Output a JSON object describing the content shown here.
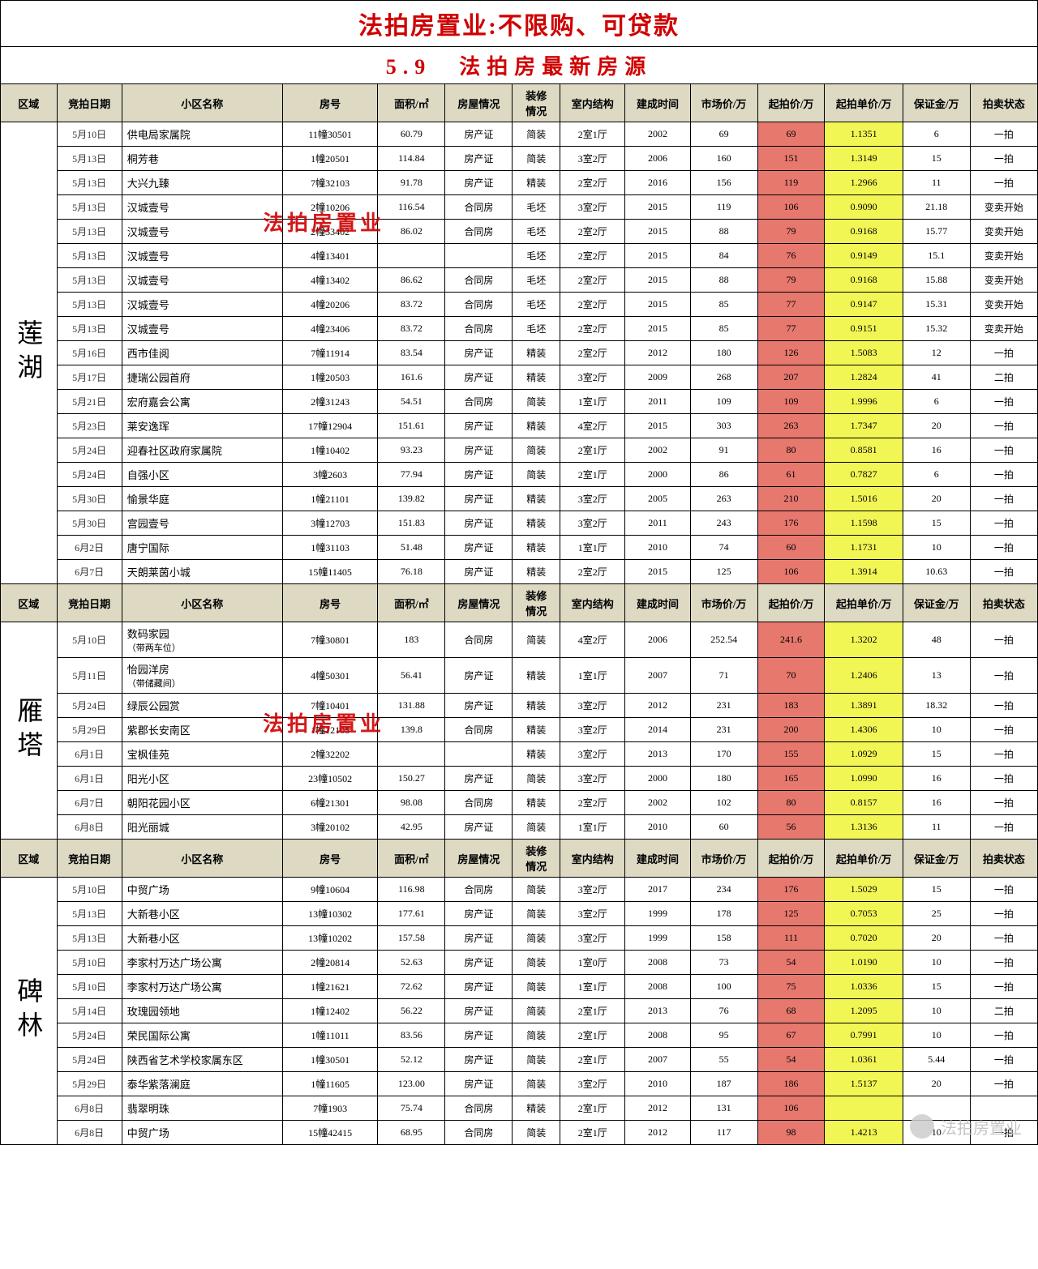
{
  "colors": {
    "accent_red": "#d00000",
    "header_bg": "#ddd9c3",
    "start_price_bg": "#e6786e",
    "unit_price_bg": "#f2f654"
  },
  "title_main": "法拍房置业:不限购、可贷款",
  "title_sub": "5.9　法拍房最新房源",
  "watermarks": {
    "overlay": "法拍房置业",
    "footer": "法拍房置业"
  },
  "headers": [
    "区域",
    "竞拍日期",
    "小区名称",
    "房号",
    "面积/㎡",
    "房屋情况",
    "装修情况",
    "室内结构",
    "建成时间",
    "市场价/万",
    "起拍价/万",
    "起拍单价/万",
    "保证金/万",
    "拍卖状态"
  ],
  "sections": [
    {
      "region": "莲湖",
      "rows": [
        {
          "date": "5月10日",
          "name": "供电局家属院",
          "room": "11幢30501",
          "area": "60.79",
          "prop": "房产证",
          "deco": "简装",
          "struc": "2室1厅",
          "year": "2002",
          "market": "69",
          "start": "69",
          "unit": "1.1351",
          "bond": "6",
          "stat": "一拍"
        },
        {
          "date": "5月13日",
          "name": "桐芳巷",
          "room": "1幢20501",
          "area": "114.84",
          "prop": "房产证",
          "deco": "简装",
          "struc": "3室2厅",
          "year": "2006",
          "market": "160",
          "start": "151",
          "unit": "1.3149",
          "bond": "15",
          "stat": "一拍"
        },
        {
          "date": "5月13日",
          "name": "大兴九臻",
          "room": "7幢32103",
          "area": "91.78",
          "prop": "房产证",
          "deco": "精装",
          "struc": "2室2厅",
          "year": "2016",
          "market": "156",
          "start": "119",
          "unit": "1.2966",
          "bond": "11",
          "stat": "一拍"
        },
        {
          "date": "5月13日",
          "name": "汉城壹号",
          "room": "2幢10206",
          "area": "116.54",
          "prop": "合同房",
          "deco": "毛坯",
          "struc": "3室2厅",
          "year": "2015",
          "market": "119",
          "start": "106",
          "unit": "0.9090",
          "bond": "21.18",
          "stat": "变卖开始"
        },
        {
          "date": "5月13日",
          "name": "汉城壹号",
          "room": "2幢33402",
          "area": "86.02",
          "prop": "合同房",
          "deco": "毛坯",
          "struc": "2室2厅",
          "year": "2015",
          "market": "88",
          "start": "79",
          "unit": "0.9168",
          "bond": "15.77",
          "stat": "变卖开始"
        },
        {
          "date": "5月13日",
          "name": "汉城壹号",
          "room": "4幢13401",
          "area": "",
          "prop": "",
          "deco": "毛坯",
          "struc": "2室2厅",
          "year": "2015",
          "market": "84",
          "start": "76",
          "unit": "0.9149",
          "bond": "15.1",
          "stat": "变卖开始"
        },
        {
          "date": "5月13日",
          "name": "汉城壹号",
          "room": "4幢13402",
          "area": "86.62",
          "prop": "合同房",
          "deco": "毛坯",
          "struc": "2室2厅",
          "year": "2015",
          "market": "88",
          "start": "79",
          "unit": "0.9168",
          "bond": "15.88",
          "stat": "变卖开始"
        },
        {
          "date": "5月13日",
          "name": "汉城壹号",
          "room": "4幢20206",
          "area": "83.72",
          "prop": "合同房",
          "deco": "毛坯",
          "struc": "2室2厅",
          "year": "2015",
          "market": "85",
          "start": "77",
          "unit": "0.9147",
          "bond": "15.31",
          "stat": "变卖开始"
        },
        {
          "date": "5月13日",
          "name": "汉城壹号",
          "room": "4幢23406",
          "area": "83.72",
          "prop": "合同房",
          "deco": "毛坯",
          "struc": "2室2厅",
          "year": "2015",
          "market": "85",
          "start": "77",
          "unit": "0.9151",
          "bond": "15.32",
          "stat": "变卖开始"
        },
        {
          "date": "5月16日",
          "name": "西市佳阅",
          "room": "7幢11914",
          "area": "83.54",
          "prop": "房产证",
          "deco": "精装",
          "struc": "2室2厅",
          "year": "2012",
          "market": "180",
          "start": "126",
          "unit": "1.5083",
          "bond": "12",
          "stat": "一拍"
        },
        {
          "date": "5月17日",
          "name": "捷瑞公园首府",
          "room": "1幢20503",
          "area": "161.6",
          "prop": "房产证",
          "deco": "精装",
          "struc": "3室2厅",
          "year": "2009",
          "market": "268",
          "start": "207",
          "unit": "1.2824",
          "bond": "41",
          "stat": "二拍"
        },
        {
          "date": "5月21日",
          "name": "宏府嘉会公寓",
          "room": "2幢31243",
          "area": "54.51",
          "prop": "合同房",
          "deco": "简装",
          "struc": "1室1厅",
          "year": "2011",
          "market": "109",
          "start": "109",
          "unit": "1.9996",
          "bond": "6",
          "stat": "一拍"
        },
        {
          "date": "5月23日",
          "name": "莱安逸珲",
          "room": "17幢12904",
          "area": "151.61",
          "prop": "房产证",
          "deco": "精装",
          "struc": "4室2厅",
          "year": "2015",
          "market": "303",
          "start": "263",
          "unit": "1.7347",
          "bond": "20",
          "stat": "一拍"
        },
        {
          "date": "5月24日",
          "name": "迎春社区政府家属院",
          "room": "1幢10402",
          "area": "93.23",
          "prop": "房产证",
          "deco": "简装",
          "struc": "2室1厅",
          "year": "2002",
          "market": "91",
          "start": "80",
          "unit": "0.8581",
          "bond": "16",
          "stat": "一拍"
        },
        {
          "date": "5月24日",
          "name": "自强小区",
          "room": "3幢2603",
          "area": "77.94",
          "prop": "房产证",
          "deco": "简装",
          "struc": "2室1厅",
          "year": "2000",
          "market": "86",
          "start": "61",
          "unit": "0.7827",
          "bond": "6",
          "stat": "一拍"
        },
        {
          "date": "5月30日",
          "name": "愉景华庭",
          "room": "1幢21101",
          "area": "139.82",
          "prop": "房产证",
          "deco": "精装",
          "struc": "3室2厅",
          "year": "2005",
          "market": "263",
          "start": "210",
          "unit": "1.5016",
          "bond": "20",
          "stat": "一拍"
        },
        {
          "date": "5月30日",
          "name": "宫园壹号",
          "room": "3幢12703",
          "area": "151.83",
          "prop": "房产证",
          "deco": "精装",
          "struc": "3室2厅",
          "year": "2011",
          "market": "243",
          "start": "176",
          "unit": "1.1598",
          "bond": "15",
          "stat": "一拍"
        },
        {
          "date": "6月2日",
          "name": "唐宁国际",
          "room": "1幢31103",
          "area": "51.48",
          "prop": "房产证",
          "deco": "精装",
          "struc": "1室1厅",
          "year": "2010",
          "market": "74",
          "start": "60",
          "unit": "1.1731",
          "bond": "10",
          "stat": "一拍"
        },
        {
          "date": "6月7日",
          "name": "天朗莱茵小城",
          "room": "15幢11405",
          "area": "76.18",
          "prop": "房产证",
          "deco": "精装",
          "struc": "2室2厅",
          "year": "2015",
          "market": "125",
          "start": "106",
          "unit": "1.3914",
          "bond": "10.63",
          "stat": "一拍"
        }
      ]
    },
    {
      "region": "雁塔",
      "rows": [
        {
          "date": "5月10日",
          "name": "数码家园",
          "sub": "（带两车位）",
          "room": "7幢30801",
          "area": "183",
          "prop": "合同房",
          "deco": "简装",
          "struc": "4室2厅",
          "year": "2006",
          "market": "252.54",
          "start": "241.6",
          "unit": "1.3202",
          "bond": "48",
          "stat": "一拍"
        },
        {
          "date": "5月11日",
          "name": "怡园洋房",
          "sub": "（带储藏间）",
          "room": "4幢50301",
          "area": "56.41",
          "prop": "房产证",
          "deco": "精装",
          "struc": "1室1厅",
          "year": "2007",
          "market": "71",
          "start": "70",
          "unit": "1.2406",
          "bond": "13",
          "stat": "一拍"
        },
        {
          "date": "5月24日",
          "name": "绿辰公园赏",
          "room": "7幢10401",
          "area": "131.88",
          "prop": "房产证",
          "deco": "精装",
          "struc": "3室2厅",
          "year": "2012",
          "market": "231",
          "start": "183",
          "unit": "1.3891",
          "bond": "18.32",
          "stat": "一拍"
        },
        {
          "date": "5月29日",
          "name": "紫郡长安南区",
          "room": "1幢12105",
          "area": "139.8",
          "prop": "合同房",
          "deco": "精装",
          "struc": "3室2厅",
          "year": "2014",
          "market": "231",
          "start": "200",
          "unit": "1.4306",
          "bond": "10",
          "stat": "一拍"
        },
        {
          "date": "6月1日",
          "name": "宝枫佳苑",
          "room": "2幢32202",
          "area": "",
          "prop": "",
          "deco": "精装",
          "struc": "3室2厅",
          "year": "2013",
          "market": "170",
          "start": "155",
          "unit": "1.0929",
          "bond": "15",
          "stat": "一拍"
        },
        {
          "date": "6月1日",
          "name": "阳光小区",
          "room": "23幢10502",
          "area": "150.27",
          "prop": "房产证",
          "deco": "简装",
          "struc": "3室2厅",
          "year": "2000",
          "market": "180",
          "start": "165",
          "unit": "1.0990",
          "bond": "16",
          "stat": "一拍"
        },
        {
          "date": "6月7日",
          "name": "朝阳花园小区",
          "room": "6幢21301",
          "area": "98.08",
          "prop": "合同房",
          "deco": "精装",
          "struc": "2室2厅",
          "year": "2002",
          "market": "102",
          "start": "80",
          "unit": "0.8157",
          "bond": "16",
          "stat": "一拍"
        },
        {
          "date": "6月8日",
          "name": "阳光丽城",
          "room": "3幢20102",
          "area": "42.95",
          "prop": "房产证",
          "deco": "简装",
          "struc": "1室1厅",
          "year": "2010",
          "market": "60",
          "start": "56",
          "unit": "1.3136",
          "bond": "11",
          "stat": "一拍"
        }
      ]
    },
    {
      "region": "碑林",
      "rows": [
        {
          "date": "5月10日",
          "name": "中贸广场",
          "room": "9幢10604",
          "area": "116.98",
          "prop": "合同房",
          "deco": "简装",
          "struc": "3室2厅",
          "year": "2017",
          "market": "234",
          "start": "176",
          "unit": "1.5029",
          "bond": "15",
          "stat": "一拍"
        },
        {
          "date": "5月13日",
          "name": "大新巷小区",
          "room": "13幢10302",
          "area": "177.61",
          "prop": "房产证",
          "deco": "简装",
          "struc": "3室2厅",
          "year": "1999",
          "market": "178",
          "start": "125",
          "unit": "0.7053",
          "bond": "25",
          "stat": "一拍"
        },
        {
          "date": "5月13日",
          "name": "大新巷小区",
          "room": "13幢10202",
          "area": "157.58",
          "prop": "房产证",
          "deco": "简装",
          "struc": "3室2厅",
          "year": "1999",
          "market": "158",
          "start": "111",
          "unit": "0.7020",
          "bond": "20",
          "stat": "一拍"
        },
        {
          "date": "5月10日",
          "name": "李家村万达广场公寓",
          "room": "2幢20814",
          "area": "52.63",
          "prop": "房产证",
          "deco": "简装",
          "struc": "1室0厅",
          "year": "2008",
          "market": "73",
          "start": "54",
          "unit": "1.0190",
          "bond": "10",
          "stat": "一拍"
        },
        {
          "date": "5月10日",
          "name": "李家村万达广场公寓",
          "room": "1幢21621",
          "area": "72.62",
          "prop": "房产证",
          "deco": "简装",
          "struc": "1室1厅",
          "year": "2008",
          "market": "100",
          "start": "75",
          "unit": "1.0336",
          "bond": "15",
          "stat": "一拍"
        },
        {
          "date": "5月14日",
          "name": "玫瑰园领地",
          "room": "1幢12402",
          "area": "56.22",
          "prop": "房产证",
          "deco": "简装",
          "struc": "2室1厅",
          "year": "2013",
          "market": "76",
          "start": "68",
          "unit": "1.2095",
          "bond": "10",
          "stat": "二拍"
        },
        {
          "date": "5月24日",
          "name": "荣民国际公寓",
          "room": "1幢11011",
          "area": "83.56",
          "prop": "房产证",
          "deco": "简装",
          "struc": "2室1厅",
          "year": "2008",
          "market": "95",
          "start": "67",
          "unit": "0.7991",
          "bond": "10",
          "stat": "一拍"
        },
        {
          "date": "5月24日",
          "name": "陕西省艺术学校家属东区",
          "room": "1幢30501",
          "area": "52.12",
          "prop": "房产证",
          "deco": "简装",
          "struc": "2室1厅",
          "year": "2007",
          "market": "55",
          "start": "54",
          "unit": "1.0361",
          "bond": "5.44",
          "stat": "一拍"
        },
        {
          "date": "5月29日",
          "name": "泰华紫落澜庭",
          "room": "1幢11605",
          "area": "123.00",
          "prop": "房产证",
          "deco": "简装",
          "struc": "3室2厅",
          "year": "2010",
          "market": "187",
          "start": "186",
          "unit": "1.5137",
          "bond": "20",
          "stat": "一拍"
        },
        {
          "date": "6月8日",
          "name": "翡翠明珠",
          "room": "7幢1903",
          "area": "75.74",
          "prop": "合同房",
          "deco": "精装",
          "struc": "2室1厅",
          "year": "2012",
          "market": "131",
          "start": "106",
          "unit": "",
          "bond": "",
          "stat": ""
        },
        {
          "date": "6月8日",
          "name": "中贸广场",
          "room": "15幢42415",
          "area": "68.95",
          "prop": "合同房",
          "deco": "简装",
          "struc": "2室1厅",
          "year": "2012",
          "market": "117",
          "start": "98",
          "unit": "1.4213",
          "bond": "10",
          "stat": "一拍"
        }
      ]
    }
  ]
}
